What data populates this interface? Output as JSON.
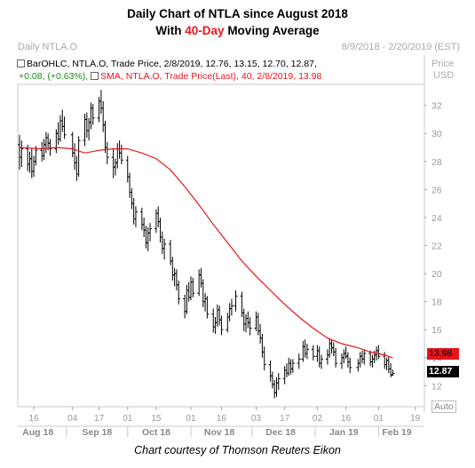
{
  "title_line1": "Daily Chart of NTLA since August 2018",
  "title_line2_pre": "With ",
  "title_line2_accent": "40-Day",
  "title_line2_post": " Moving Average",
  "header_left": "Daily NTLA.O",
  "header_right": "8/9/2018 - 2/20/2019 (EST)",
  "axis_header": [
    "Price",
    "USD"
  ],
  "legend_ohlc": "BarOHLC, NTLA.O, Trade Price, 2/8/2019, 12.76, 13.15, 12.70, 12.87,",
  "legend_change": "+0.08, (+0.63%),",
  "legend_sma": "SMA, NTLA.O, Trade Price(Last),  40,  2/8/2019, 13.98",
  "sma_tag": "13.98",
  "last_tag": "12.87",
  "auto_label": "Auto",
  "credit": "Chart courtesy of Thomson Reuters Eikon",
  "chart_data": {
    "type": "line",
    "y_ticks": [
      "32",
      "30",
      "28",
      "26",
      "24",
      "22",
      "20",
      "18",
      "16",
      "14",
      "12"
    ],
    "ylim": [
      10.5,
      33.5
    ],
    "grid": false,
    "x_day_ticks": [
      "16",
      "04",
      "17",
      "01",
      "15",
      "01",
      "16",
      "03",
      "17",
      "02",
      "16",
      "01",
      "19"
    ],
    "x_month_ticks": [
      "Aug 18",
      "Sep 18",
      "Oct 18",
      "Nov 18",
      "Dec 18",
      "Jan 19",
      "Feb 19"
    ],
    "x_range": [
      "2018-08-09",
      "2019-02-20"
    ],
    "series": [
      {
        "kind": "ohlc",
        "color": "#000000",
        "bars": [
          [
            "2018-08-09",
            29.2,
            29.9,
            27.4,
            28.3
          ],
          [
            "2018-08-10",
            28.3,
            29.5,
            27.6,
            28.9
          ],
          [
            "2018-08-13",
            28.9,
            29.2,
            27.3,
            27.8
          ],
          [
            "2018-08-14",
            27.8,
            28.7,
            27.2,
            28.2
          ],
          [
            "2018-08-15",
            28.2,
            28.9,
            26.8,
            27.3
          ],
          [
            "2018-08-16",
            27.3,
            28.4,
            26.9,
            28.0
          ],
          [
            "2018-08-17",
            28.0,
            29.1,
            27.7,
            28.8
          ],
          [
            "2018-08-20",
            28.8,
            29.4,
            28.0,
            28.4
          ],
          [
            "2018-08-21",
            28.4,
            29.6,
            28.1,
            29.2
          ],
          [
            "2018-08-22",
            29.2,
            30.1,
            28.6,
            29.7
          ],
          [
            "2018-08-23",
            29.7,
            30.0,
            28.8,
            29.3
          ],
          [
            "2018-08-24",
            29.3,
            29.6,
            28.4,
            28.9
          ],
          [
            "2018-08-27",
            28.9,
            30.3,
            28.6,
            30.0
          ],
          [
            "2018-08-28",
            30.0,
            30.8,
            29.2,
            29.6
          ],
          [
            "2018-08-29",
            29.6,
            31.3,
            29.4,
            30.9
          ],
          [
            "2018-08-30",
            30.9,
            31.7,
            30.1,
            30.5
          ],
          [
            "2018-08-31",
            30.5,
            31.2,
            29.6,
            29.9
          ],
          [
            "2018-09-04",
            29.9,
            30.1,
            28.3,
            28.6
          ],
          [
            "2018-09-05",
            28.6,
            29.3,
            27.4,
            27.9
          ],
          [
            "2018-09-06",
            27.9,
            28.4,
            26.6,
            27.1
          ],
          [
            "2018-09-07",
            27.1,
            29.8,
            26.9,
            29.5
          ],
          [
            "2018-09-10",
            29.5,
            31.4,
            29.1,
            31.0
          ],
          [
            "2018-09-11",
            31.0,
            31.5,
            29.7,
            30.2
          ],
          [
            "2018-09-12",
            30.2,
            31.1,
            29.5,
            30.8
          ],
          [
            "2018-09-13",
            30.8,
            32.2,
            30.3,
            31.8
          ],
          [
            "2018-09-14",
            31.8,
            32.1,
            30.6,
            31.1
          ],
          [
            "2018-09-17",
            31.1,
            32.6,
            30.8,
            32.3
          ],
          [
            "2018-09-18",
            32.3,
            33.1,
            31.4,
            31.8
          ],
          [
            "2018-09-19",
            31.8,
            32.3,
            30.1,
            30.6
          ],
          [
            "2018-09-20",
            30.6,
            30.9,
            28.6,
            29.0
          ],
          [
            "2018-09-21",
            29.0,
            29.4,
            27.8,
            28.3
          ],
          [
            "2018-09-24",
            28.3,
            28.9,
            26.8,
            27.6
          ],
          [
            "2018-09-25",
            27.6,
            28.2,
            27.0,
            27.9
          ],
          [
            "2018-09-26",
            27.9,
            29.3,
            27.5,
            28.9
          ],
          [
            "2018-09-27",
            28.9,
            29.5,
            28.2,
            28.6
          ],
          [
            "2018-09-28",
            28.6,
            29.2,
            27.8,
            28.1
          ],
          [
            "2018-10-01",
            28.1,
            28.4,
            26.5,
            26.9
          ],
          [
            "2018-10-02",
            26.9,
            27.2,
            25.4,
            25.8
          ],
          [
            "2018-10-03",
            25.8,
            26.1,
            24.6,
            25.0
          ],
          [
            "2018-10-04",
            25.0,
            25.4,
            23.5,
            23.9
          ],
          [
            "2018-10-05",
            23.9,
            24.8,
            23.3,
            24.4
          ],
          [
            "2018-10-08",
            24.4,
            24.7,
            23.1,
            23.5
          ],
          [
            "2018-10-09",
            23.5,
            24.0,
            22.6,
            23.1
          ],
          [
            "2018-10-10",
            23.1,
            23.4,
            21.8,
            22.2
          ],
          [
            "2018-10-11",
            22.2,
            23.3,
            21.6,
            22.9
          ],
          [
            "2018-10-12",
            22.9,
            23.6,
            22.3,
            23.2
          ],
          [
            "2018-10-15",
            23.2,
            24.6,
            22.9,
            24.3
          ],
          [
            "2018-10-16",
            24.3,
            24.8,
            23.3,
            23.7
          ],
          [
            "2018-10-17",
            23.7,
            24.0,
            22.2,
            22.6
          ],
          [
            "2018-10-18",
            22.6,
            23.0,
            21.4,
            21.8
          ],
          [
            "2018-10-19",
            21.8,
            22.5,
            21.0,
            22.1
          ],
          [
            "2018-10-22",
            22.1,
            22.4,
            20.6,
            20.9
          ],
          [
            "2018-10-23",
            20.9,
            21.2,
            19.5,
            19.9
          ],
          [
            "2018-10-24",
            19.9,
            20.4,
            19.1,
            20.0
          ],
          [
            "2018-10-25",
            20.0,
            20.3,
            18.8,
            19.2
          ],
          [
            "2018-10-26",
            19.2,
            19.5,
            17.8,
            18.2
          ],
          [
            "2018-10-29",
            18.2,
            18.5,
            16.8,
            17.3
          ],
          [
            "2018-10-30",
            17.3,
            19.2,
            17.1,
            18.8
          ],
          [
            "2018-10-31",
            18.8,
            19.4,
            18.0,
            18.3
          ],
          [
            "2018-11-01",
            18.3,
            19.8,
            18.1,
            19.4
          ],
          [
            "2018-11-02",
            19.4,
            19.7,
            18.3,
            18.6
          ],
          [
            "2018-11-05",
            18.6,
            20.3,
            18.4,
            19.9
          ],
          [
            "2018-11-06",
            19.9,
            20.4,
            19.0,
            19.3
          ],
          [
            "2018-11-07",
            19.3,
            19.6,
            17.6,
            18.0
          ],
          [
            "2018-11-08",
            18.0,
            18.6,
            17.3,
            18.2
          ],
          [
            "2018-11-09",
            18.2,
            18.4,
            16.8,
            17.1
          ],
          [
            "2018-11-12",
            17.1,
            17.5,
            15.8,
            16.2
          ],
          [
            "2018-11-13",
            16.2,
            16.9,
            15.7,
            16.5
          ],
          [
            "2018-11-14",
            16.5,
            17.8,
            16.2,
            17.4
          ],
          [
            "2018-11-15",
            17.4,
            17.7,
            16.3,
            16.7
          ],
          [
            "2018-11-16",
            16.7,
            17.0,
            15.6,
            16.0
          ],
          [
            "2018-11-19",
            16.0,
            17.2,
            15.8,
            16.9
          ],
          [
            "2018-11-20",
            16.9,
            17.9,
            16.6,
            17.5
          ],
          [
            "2018-11-21",
            17.5,
            18.2,
            17.0,
            17.7
          ],
          [
            "2018-11-23",
            17.7,
            18.8,
            17.3,
            18.4
          ],
          [
            "2018-11-26",
            18.4,
            18.7,
            16.9,
            17.2
          ],
          [
            "2018-11-27",
            17.2,
            17.5,
            15.9,
            16.4
          ],
          [
            "2018-11-28",
            16.4,
            17.1,
            15.8,
            16.8
          ],
          [
            "2018-11-29",
            16.8,
            17.3,
            16.1,
            16.5
          ],
          [
            "2018-11-30",
            16.5,
            16.9,
            15.6,
            16.1
          ],
          [
            "2018-12-03",
            16.1,
            17.3,
            15.9,
            16.9
          ],
          [
            "2018-12-04",
            16.9,
            17.2,
            15.6,
            15.9
          ],
          [
            "2018-12-05",
            15.9,
            16.4,
            15.0,
            15.4
          ],
          [
            "2018-12-06",
            15.4,
            15.7,
            14.0,
            14.4
          ],
          [
            "2018-12-07",
            14.4,
            14.8,
            13.1,
            13.5
          ],
          [
            "2018-12-10",
            13.5,
            13.8,
            12.3,
            12.7
          ],
          [
            "2018-12-11",
            12.7,
            13.0,
            11.8,
            12.1
          ],
          [
            "2018-12-12",
            12.1,
            12.4,
            11.1,
            11.5
          ],
          [
            "2018-12-13",
            11.5,
            12.6,
            11.2,
            12.2
          ],
          [
            "2018-12-14",
            12.2,
            12.9,
            11.7,
            12.5
          ],
          [
            "2018-12-17",
            12.5,
            13.4,
            12.1,
            13.1
          ],
          [
            "2018-12-18",
            13.1,
            13.6,
            12.6,
            12.9
          ],
          [
            "2018-12-19",
            12.9,
            14.0,
            12.7,
            13.6
          ],
          [
            "2018-12-20",
            13.6,
            13.9,
            12.8,
            13.2
          ],
          [
            "2018-12-21",
            13.2,
            13.9,
            12.9,
            13.6
          ],
          [
            "2018-12-24",
            13.6,
            14.3,
            13.2,
            13.9
          ],
          [
            "2018-12-26",
            13.9,
            15.2,
            13.7,
            14.8
          ],
          [
            "2018-12-27",
            14.8,
            15.3,
            14.0,
            14.3
          ],
          [
            "2018-12-28",
            14.3,
            15.0,
            13.9,
            14.6
          ],
          [
            "2018-12-31",
            14.6,
            14.9,
            13.8,
            14.1
          ],
          [
            "2019-01-02",
            14.1,
            14.9,
            13.7,
            14.5
          ],
          [
            "2019-01-03",
            14.5,
            14.8,
            13.3,
            13.6
          ],
          [
            "2019-01-04",
            13.6,
            14.2,
            13.2,
            13.9
          ],
          [
            "2019-01-07",
            13.9,
            14.6,
            13.5,
            14.2
          ],
          [
            "2019-01-08",
            14.2,
            15.4,
            14.0,
            15.0
          ],
          [
            "2019-01-09",
            15.0,
            15.3,
            14.3,
            14.7
          ],
          [
            "2019-01-10",
            14.7,
            15.1,
            14.1,
            14.4
          ],
          [
            "2019-01-11",
            14.4,
            14.7,
            13.3,
            13.6
          ],
          [
            "2019-01-14",
            13.6,
            14.3,
            13.2,
            14.0
          ],
          [
            "2019-01-15",
            14.0,
            14.6,
            13.6,
            14.3
          ],
          [
            "2019-01-16",
            14.3,
            14.8,
            13.9,
            14.1
          ],
          [
            "2019-01-17",
            14.1,
            14.4,
            13.3,
            13.7
          ],
          [
            "2019-01-18",
            13.7,
            14.0,
            12.9,
            13.3
          ],
          [
            "2019-01-22",
            13.3,
            13.9,
            13.0,
            13.6
          ],
          [
            "2019-01-23",
            13.6,
            14.4,
            13.3,
            14.1
          ],
          [
            "2019-01-24",
            14.1,
            14.5,
            13.6,
            13.9
          ],
          [
            "2019-01-25",
            13.9,
            14.6,
            13.5,
            14.3
          ],
          [
            "2019-01-28",
            14.3,
            14.5,
            13.4,
            13.7
          ],
          [
            "2019-01-29",
            13.7,
            14.2,
            13.3,
            13.9
          ],
          [
            "2019-01-30",
            13.9,
            14.5,
            13.6,
            14.2
          ],
          [
            "2019-01-31",
            14.2,
            14.8,
            13.8,
            14.5
          ],
          [
            "2019-02-01",
            14.5,
            14.9,
            13.9,
            14.1
          ],
          [
            "2019-02-04",
            14.1,
            14.4,
            13.2,
            13.5
          ],
          [
            "2019-02-05",
            13.5,
            14.0,
            13.1,
            13.8
          ],
          [
            "2019-02-06",
            13.8,
            14.1,
            12.9,
            13.2
          ],
          [
            "2019-02-07",
            13.2,
            13.6,
            12.6,
            12.79
          ],
          [
            "2019-02-08",
            12.76,
            13.15,
            12.7,
            12.87
          ]
        ]
      },
      {
        "kind": "line",
        "name": "SMA 40",
        "color": "#e8141c",
        "points": [
          [
            "2018-08-09",
            29.0
          ],
          [
            "2018-08-20",
            28.9
          ],
          [
            "2018-08-27",
            29.0
          ],
          [
            "2018-09-04",
            28.9
          ],
          [
            "2018-09-10",
            28.6
          ],
          [
            "2018-09-17",
            28.8
          ],
          [
            "2018-09-24",
            28.9
          ],
          [
            "2018-10-01",
            28.9
          ],
          [
            "2018-10-08",
            28.6
          ],
          [
            "2018-10-15",
            28.2
          ],
          [
            "2018-10-22",
            27.4
          ],
          [
            "2018-10-29",
            26.2
          ],
          [
            "2018-11-05",
            24.9
          ],
          [
            "2018-11-12",
            23.5
          ],
          [
            "2018-11-19",
            22.2
          ],
          [
            "2018-11-26",
            20.9
          ],
          [
            "2018-12-03",
            19.8
          ],
          [
            "2018-12-10",
            18.8
          ],
          [
            "2018-12-17",
            17.8
          ],
          [
            "2018-12-24",
            16.9
          ],
          [
            "2018-12-31",
            16.1
          ],
          [
            "2019-01-07",
            15.4
          ],
          [
            "2019-01-14",
            15.0
          ],
          [
            "2019-01-22",
            14.7
          ],
          [
            "2019-01-28",
            14.4
          ],
          [
            "2019-02-04",
            14.2
          ],
          [
            "2019-02-08",
            13.98
          ]
        ]
      }
    ]
  }
}
